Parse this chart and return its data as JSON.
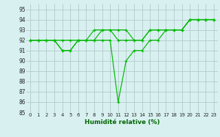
{
  "title": "",
  "xlabel": "Humidité relative (%)",
  "ylabel": "",
  "bg_color": "#d8f0f0",
  "grid_color": "#b0c8c8",
  "line_color": "#00bb00",
  "xlim": [
    -0.5,
    23.5
  ],
  "ylim": [
    85,
    95.5
  ],
  "yticks": [
    85,
    86,
    87,
    88,
    89,
    90,
    91,
    92,
    93,
    94,
    95
  ],
  "xticks": [
    0,
    1,
    2,
    3,
    4,
    5,
    6,
    7,
    8,
    9,
    10,
    11,
    12,
    13,
    14,
    15,
    16,
    17,
    18,
    19,
    20,
    21,
    22,
    23
  ],
  "series": [
    [
      92,
      92,
      92,
      92,
      91,
      91,
      92,
      92,
      92,
      92,
      92,
      86,
      90,
      91,
      91,
      92,
      92,
      93,
      93,
      93,
      94,
      94,
      94,
      94
    ],
    [
      92,
      92,
      92,
      92,
      91,
      91,
      92,
      92,
      92,
      93,
      93,
      92,
      92,
      92,
      92,
      93,
      93,
      93,
      93,
      93,
      94,
      94,
      94,
      94
    ],
    [
      92,
      92,
      92,
      92,
      92,
      92,
      92,
      92,
      93,
      93,
      93,
      93,
      93,
      92,
      92,
      93,
      93,
      93,
      93,
      93,
      94,
      94,
      94,
      94
    ]
  ]
}
